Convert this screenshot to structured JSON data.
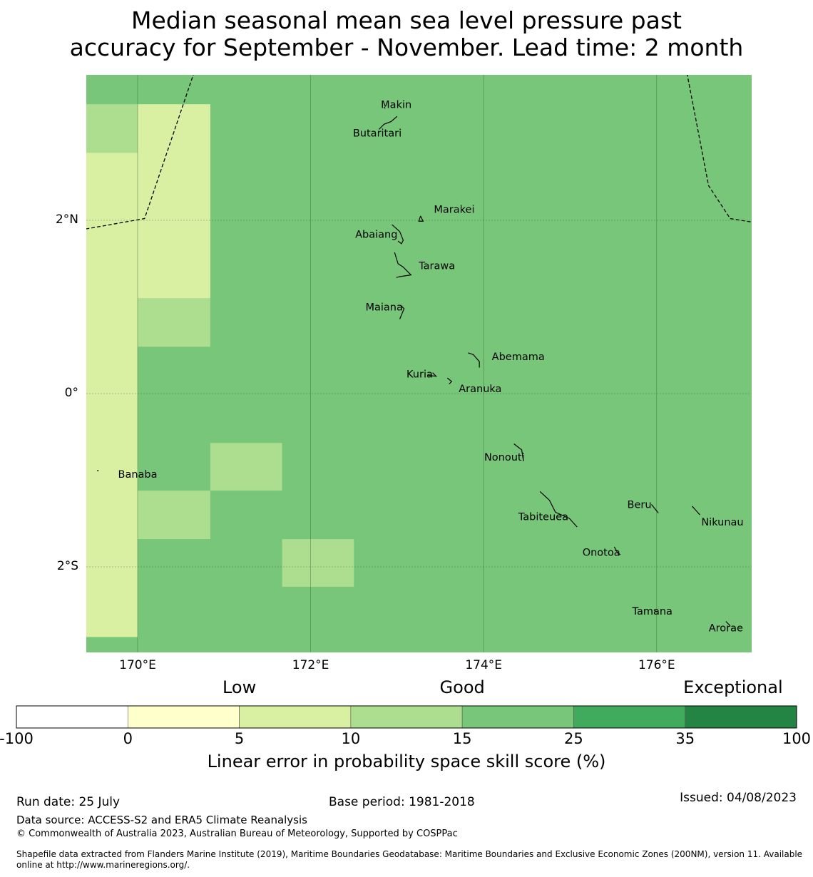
{
  "title": {
    "line1": "Median seasonal mean sea level pressure past",
    "line2": "accuracy for September - November. Lead time: 2 month"
  },
  "map": {
    "lon_range": [
      169.4,
      177.1
    ],
    "lat_range": [
      -3.0,
      3.7
    ],
    "grid_color": "#2e6b2e",
    "lat_ticks": [
      {
        "value": 2,
        "label": "2°N"
      },
      {
        "value": 0,
        "label": "0°"
      },
      {
        "value": -2,
        "label": "2°S"
      }
    ],
    "lon_ticks": [
      {
        "value": 170,
        "label": "170°E"
      },
      {
        "value": 172,
        "label": "172°E"
      },
      {
        "value": 174,
        "label": "174°E"
      },
      {
        "value": 176,
        "label": "176°E"
      }
    ],
    "background_category": "15-25",
    "cells": [
      {
        "lon0": 169.4,
        "lon1": 170.0,
        "lat0": 2.78,
        "lat1": 3.34,
        "category": "10-15"
      },
      {
        "lon0": 169.4,
        "lon1": 170.0,
        "lat0": -2.81,
        "lat1": 2.78,
        "category": "5-10"
      },
      {
        "lon0": 170.0,
        "lon1": 170.84,
        "lat0": 1.1,
        "lat1": 3.34,
        "category": "5-10"
      },
      {
        "lon0": 170.0,
        "lon1": 170.84,
        "lat0": 0.54,
        "lat1": 1.1,
        "category": "10-15"
      },
      {
        "lon0": 170.84,
        "lon1": 171.67,
        "lat0": -1.12,
        "lat1": -0.57,
        "category": "10-15"
      },
      {
        "lon0": 170.0,
        "lon1": 170.84,
        "lat0": -1.68,
        "lat1": -1.12,
        "category": "10-15"
      },
      {
        "lon0": 171.67,
        "lon1": 172.5,
        "lat0": -2.23,
        "lat1": -1.68,
        "category": "10-15"
      }
    ],
    "eez_boundaries": [
      [
        [
          169.4,
          1.9
        ],
        [
          170.08,
          2.02
        ],
        [
          170.65,
          3.7
        ]
      ],
      [
        [
          176.35,
          3.7
        ],
        [
          176.6,
          2.4
        ],
        [
          176.85,
          2.02
        ],
        [
          177.1,
          1.98
        ]
      ]
    ],
    "islands": [
      {
        "name": "Makin",
        "lon": 172.99,
        "lat": 3.33,
        "shape": [
          [
            172.85,
            3.31
          ],
          [
            172.86,
            3.29
          ]
        ]
      },
      {
        "name": "Butaritari",
        "lon": 172.77,
        "lat": 3.0,
        "shape": [
          [
            173.0,
            3.2
          ],
          [
            172.93,
            3.14
          ],
          [
            172.85,
            3.11
          ],
          [
            172.79,
            3.05
          ]
        ]
      },
      {
        "name": "Marakei",
        "lon": 173.66,
        "lat": 2.12,
        "shape": [
          [
            173.27,
            2.05
          ],
          [
            173.3,
            1.99
          ],
          [
            173.25,
            1.99
          ],
          [
            173.27,
            2.05
          ]
        ]
      },
      {
        "name": "Abaiang",
        "lon": 172.76,
        "lat": 1.83,
        "shape": [
          [
            172.94,
            1.95
          ],
          [
            173.03,
            1.87
          ],
          [
            173.07,
            1.77
          ],
          [
            173.05,
            1.73
          ],
          [
            173.01,
            1.76
          ]
        ]
      },
      {
        "name": "Tarawa",
        "lon": 173.46,
        "lat": 1.47,
        "shape": [
          [
            172.97,
            1.63
          ],
          [
            173.01,
            1.5
          ],
          [
            173.07,
            1.46
          ],
          [
            173.16,
            1.37
          ],
          [
            173.03,
            1.35
          ],
          [
            172.99,
            1.34
          ]
        ]
      },
      {
        "name": "Maiana",
        "lon": 172.85,
        "lat": 0.99,
        "shape": [
          [
            173.04,
            1.02
          ],
          [
            173.08,
            0.98
          ],
          [
            173.03,
            0.86
          ]
        ]
      },
      {
        "name": "Abemama",
        "lon": 174.4,
        "lat": 0.42,
        "shape": [
          [
            173.82,
            0.47
          ],
          [
            173.88,
            0.45
          ],
          [
            173.95,
            0.37
          ],
          [
            173.95,
            0.3
          ]
        ]
      },
      {
        "name": "Kuria",
        "lon": 173.26,
        "lat": 0.22,
        "shape": [
          [
            173.41,
            0.24
          ],
          [
            173.45,
            0.2
          ],
          [
            173.36,
            0.21
          ]
        ]
      },
      {
        "name": "Aranuka",
        "lon": 173.96,
        "lat": 0.05,
        "shape": [
          [
            173.58,
            0.18
          ],
          [
            173.63,
            0.14
          ],
          [
            173.6,
            0.11
          ]
        ]
      },
      {
        "name": "Nonouti",
        "lon": 174.24,
        "lat": -0.74,
        "shape": [
          [
            174.35,
            -0.58
          ],
          [
            174.44,
            -0.65
          ],
          [
            174.46,
            -0.78
          ]
        ]
      },
      {
        "name": "Tabiteuea",
        "lon": 174.69,
        "lat": -1.43,
        "shape": [
          [
            174.65,
            -1.13
          ],
          [
            174.76,
            -1.23
          ],
          [
            174.83,
            -1.37
          ],
          [
            174.99,
            -1.44
          ],
          [
            175.08,
            -1.54
          ]
        ]
      },
      {
        "name": "Beru",
        "lon": 175.8,
        "lat": -1.29,
        "shape": [
          [
            175.94,
            -1.28
          ],
          [
            176.02,
            -1.38
          ]
        ]
      },
      {
        "name": "Nikunau",
        "lon": 176.76,
        "lat": -1.49,
        "shape": [
          [
            176.41,
            -1.3
          ],
          [
            176.5,
            -1.4
          ]
        ]
      },
      {
        "name": "Onotoa",
        "lon": 175.36,
        "lat": -1.84,
        "shape": [
          [
            175.51,
            -1.77
          ],
          [
            175.55,
            -1.84
          ],
          [
            175.58,
            -1.86
          ]
        ]
      },
      {
        "name": "Tamana",
        "lon": 175.95,
        "lat": -2.52,
        "shape": [
          [
            175.97,
            -2.5
          ],
          [
            176.0,
            -2.52
          ]
        ]
      },
      {
        "name": "Arorae",
        "lon": 176.8,
        "lat": -2.71,
        "shape": [
          [
            176.8,
            -2.63
          ],
          [
            176.85,
            -2.68
          ]
        ]
      },
      {
        "name": "Banaba",
        "lon": 170.0,
        "lat": -0.94,
        "shape": [
          [
            169.53,
            -0.89
          ],
          [
            169.55,
            -0.89
          ]
        ]
      }
    ]
  },
  "legend": {
    "categories": [
      {
        "name": "Low",
        "anchor": "5"
      },
      {
        "name": "Good",
        "anchor": "15"
      },
      {
        "name": "Exceptional",
        "anchor": "35-100"
      }
    ],
    "bins": [
      {
        "range": "-100-0",
        "color": "#ffffff"
      },
      {
        "range": "0-5",
        "color": "#ffffcc"
      },
      {
        "range": "5-10",
        "color": "#d9f0a3"
      },
      {
        "range": "10-15",
        "color": "#addd8e"
      },
      {
        "range": "15-25",
        "color": "#78c679"
      },
      {
        "range": "25-35",
        "color": "#41ab5d"
      },
      {
        "range": "35-100",
        "color": "#238443"
      }
    ],
    "ticks": [
      "-100",
      "0",
      "5",
      "10",
      "15",
      "25",
      "35",
      "100"
    ],
    "axis_title": "Linear error in probability space skill score (%)"
  },
  "footer": {
    "run_date": "Run date: 25 July",
    "base_period": "Base period: 1981-2018",
    "issued": "Issued: 04/08/2023",
    "data_source": "Data source: ACCESS-S2 and ERA5 Climate Reanalysis",
    "copyright": "© Commonwealth of Australia 2023, Australian Bureau of Meteorology, Supported by COSPPac",
    "shapefile_line1": "Shapefile data extracted from Flanders Marine Institute (2019), Maritime Boundaries Geodatabase: Maritime Boundaries and Exclusive Economic Zones (200NM), version 11. Available",
    "shapefile_line2": "online at http://www.marineregions.org/."
  }
}
